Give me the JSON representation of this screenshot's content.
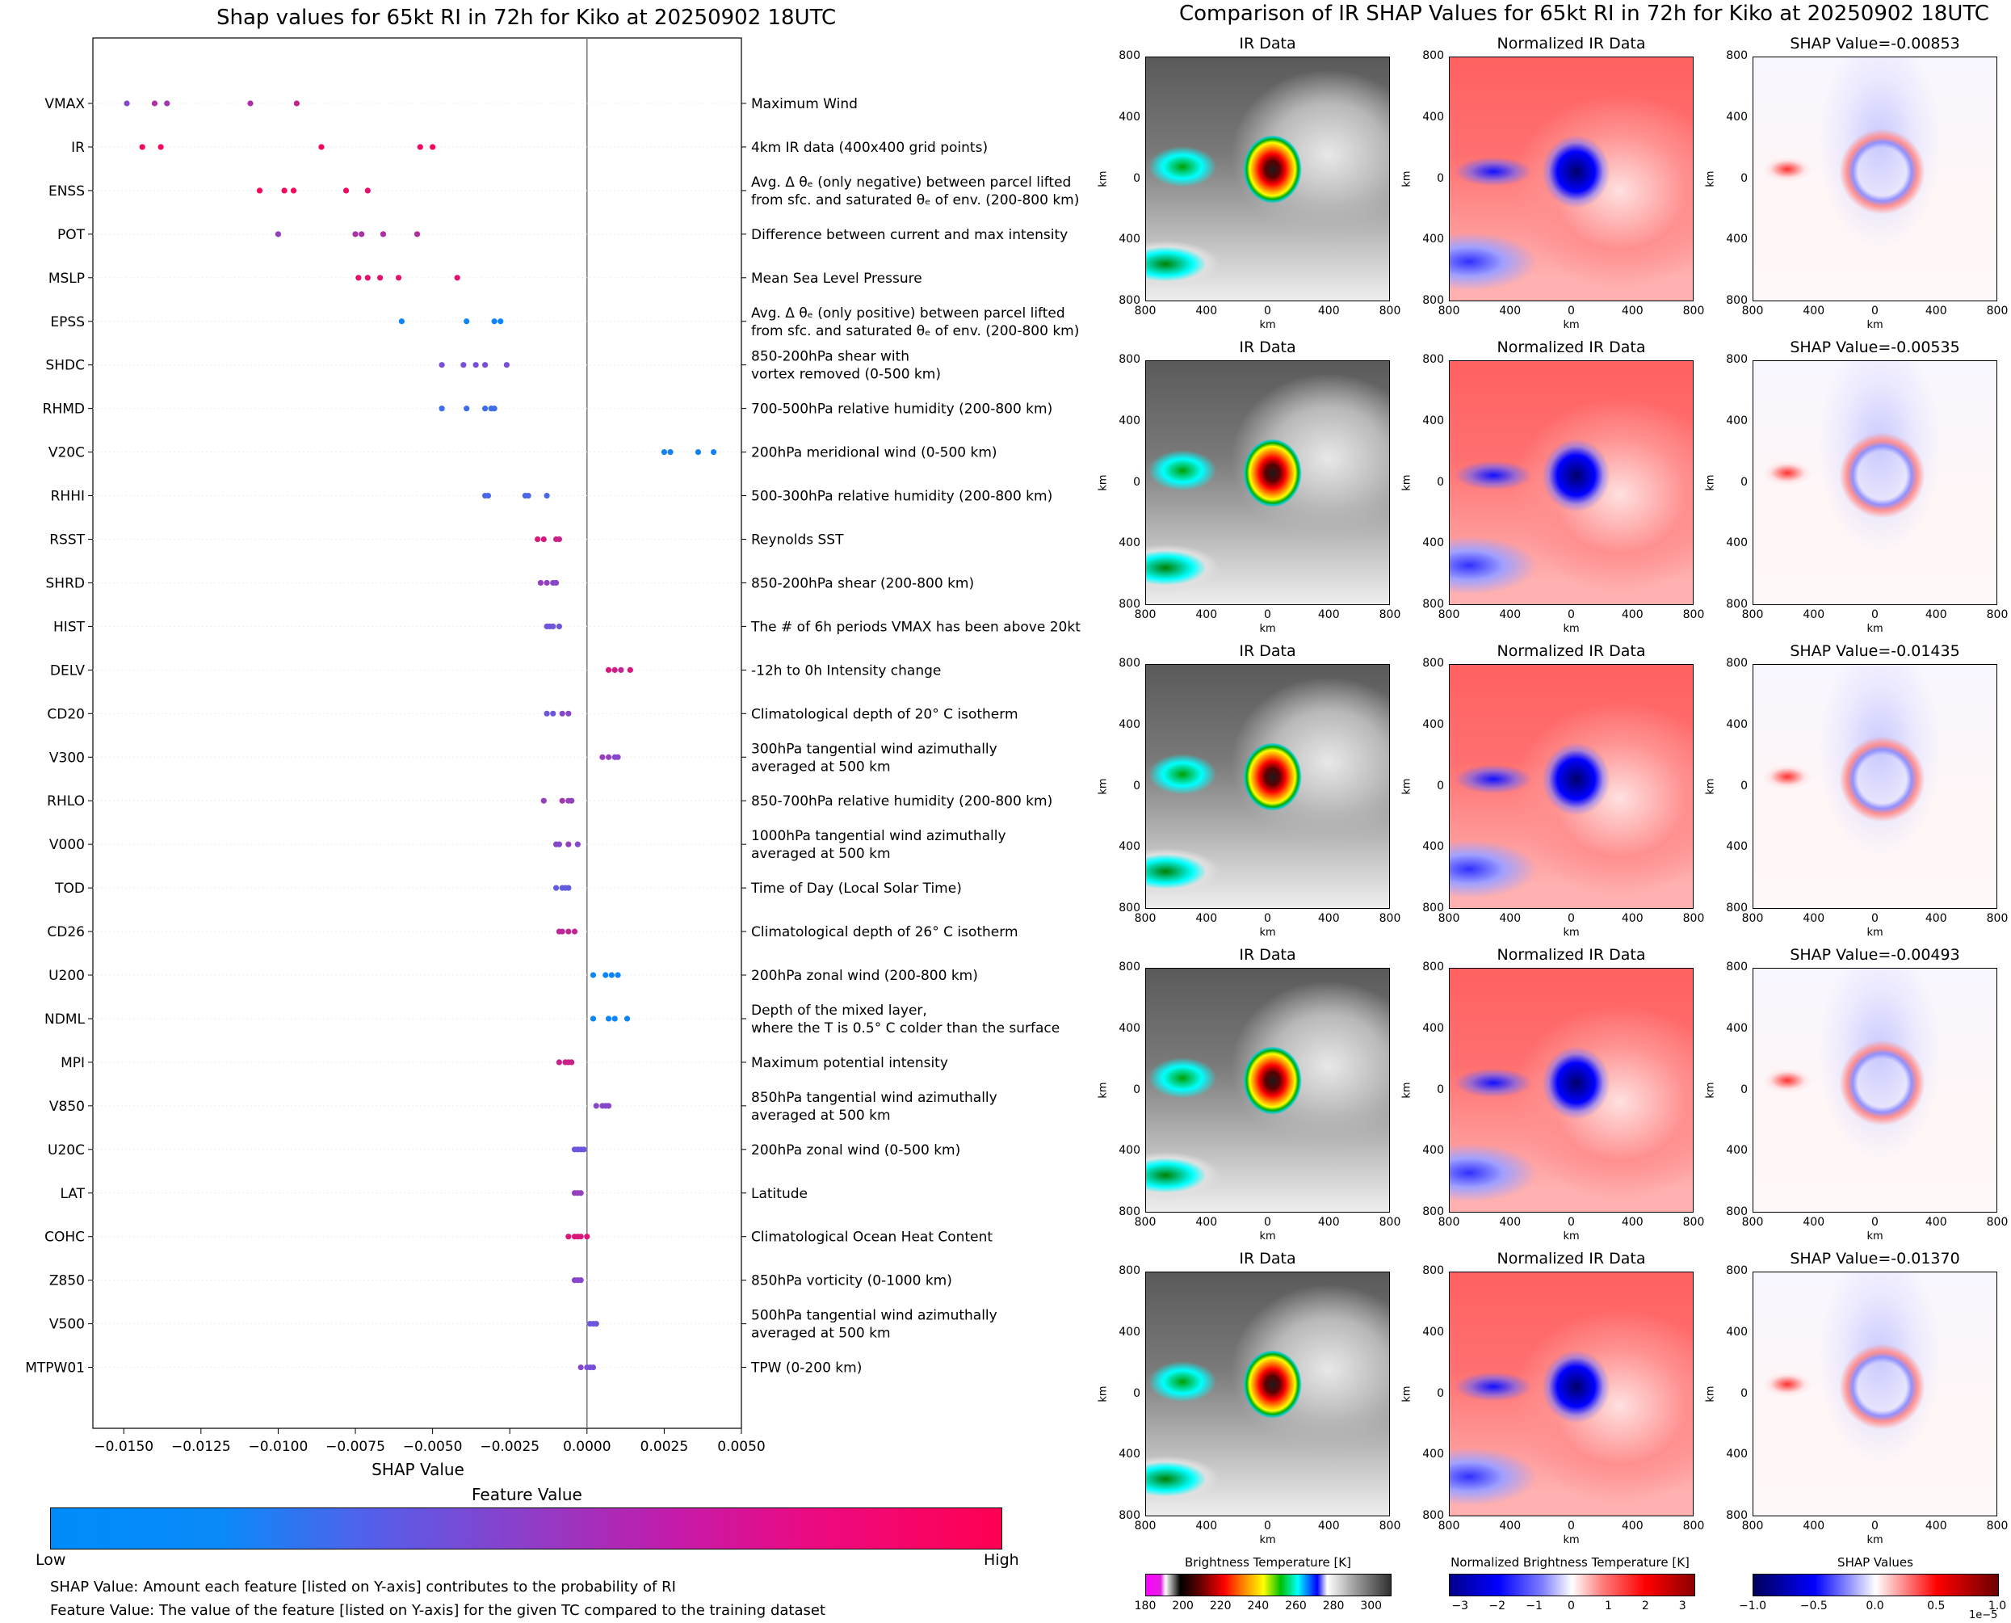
{
  "left": {
    "title": "Shap values for 65kt RI in 72h for Kiko at 20250902 18UTC",
    "xlabel": "SHAP Value",
    "colorbar": {
      "title": "Feature Value",
      "low": "Low",
      "high": "High",
      "low_color": "#008bfb",
      "mid_color": "#7a4fd8",
      "high_color": "#ff0052"
    },
    "notes": [
      "SHAP Value: Amount each feature [listed on Y-axis] contributes to the probability of RI",
      "Feature Value: The value of the feature [listed on Y-axis] for the given TC compared to the training dataset"
    ]
  },
  "chart_data": [
    {
      "type": "scatter",
      "title": "Shap values for 65kt RI in 72h for Kiko at 20250902 18UTC",
      "xlabel": "SHAP Value",
      "ylabel": "",
      "xlim": [
        -0.016,
        0.005
      ],
      "xticks": [
        -0.015,
        -0.0125,
        -0.01,
        -0.0075,
        -0.005,
        -0.0025,
        0.0,
        0.0025,
        0.005
      ],
      "xtick_labels": [
        "−0.0150",
        "−0.0125",
        "−0.0100",
        "−0.0075",
        "−0.0050",
        "−0.0025",
        "0.0000",
        "0.0025",
        "0.0050"
      ],
      "features": [
        {
          "name": "VMAX",
          "desc": [
            "Maximum Wind"
          ],
          "points": [
            [
              -0.0149,
              0.55
            ],
            [
              -0.014,
              0.7
            ],
            [
              -0.0136,
              0.65
            ],
            [
              -0.0109,
              0.7
            ],
            [
              -0.0094,
              0.78
            ]
          ]
        },
        {
          "name": "IR",
          "desc": [
            "4km IR data (400x400 grid points)"
          ],
          "points": [
            [
              -0.0144,
              0.95
            ],
            [
              -0.0138,
              0.95
            ],
            [
              -0.0086,
              0.95
            ],
            [
              -0.0054,
              0.95
            ],
            [
              -0.005,
              0.95
            ]
          ]
        },
        {
          "name": "ENSS",
          "desc": [
            "Avg. Δ θₑ (only negative) between parcel lifted",
            "from sfc. and saturated θₑ of env. (200-800 km)"
          ],
          "points": [
            [
              -0.0106,
              0.95
            ],
            [
              -0.0098,
              0.95
            ],
            [
              -0.0095,
              0.95
            ],
            [
              -0.0078,
              0.95
            ],
            [
              -0.0071,
              0.9
            ]
          ]
        },
        {
          "name": "POT",
          "desc": [
            "Difference between current and max intensity"
          ],
          "points": [
            [
              -0.01,
              0.6
            ],
            [
              -0.0075,
              0.68
            ],
            [
              -0.0073,
              0.68
            ],
            [
              -0.0066,
              0.7
            ],
            [
              -0.0055,
              0.72
            ]
          ]
        },
        {
          "name": "MSLP",
          "desc": [
            "Mean Sea Level Pressure"
          ],
          "points": [
            [
              -0.0074,
              0.9
            ],
            [
              -0.0071,
              0.9
            ],
            [
              -0.0067,
              0.9
            ],
            [
              -0.0061,
              0.9
            ],
            [
              -0.0042,
              0.9
            ]
          ]
        },
        {
          "name": "EPSS",
          "desc": [
            "Avg. Δ θₑ (only positive) between parcel lifted",
            "from sfc. and saturated θₑ of env. (200-800 km)"
          ],
          "points": [
            [
              -0.006,
              0.05
            ],
            [
              -0.0039,
              0.05
            ],
            [
              -0.003,
              0.05
            ],
            [
              -0.0028,
              0.05
            ]
          ]
        },
        {
          "name": "SHDC",
          "desc": [
            "850-200hPa shear with",
            "vortex removed (0-500 km)"
          ],
          "points": [
            [
              -0.0047,
              0.5
            ],
            [
              -0.004,
              0.5
            ],
            [
              -0.0036,
              0.5
            ],
            [
              -0.0033,
              0.5
            ],
            [
              -0.0026,
              0.5
            ]
          ]
        },
        {
          "name": "RHMD",
          "desc": [
            "700-500hPa relative humidity (200-800 km)"
          ],
          "points": [
            [
              -0.0047,
              0.25
            ],
            [
              -0.0039,
              0.25
            ],
            [
              -0.0033,
              0.25
            ],
            [
              -0.0031,
              0.25
            ],
            [
              -0.003,
              0.25
            ]
          ]
        },
        {
          "name": "V20C",
          "desc": [
            "200hPa meridional wind (0-500 km)"
          ],
          "points": [
            [
              0.0025,
              0.08
            ],
            [
              0.0027,
              0.08
            ],
            [
              0.0036,
              0.08
            ],
            [
              0.0041,
              0.08
            ]
          ]
        },
        {
          "name": "RHHI",
          "desc": [
            "500-300hPa relative humidity (200-800 km)"
          ],
          "points": [
            [
              -0.0033,
              0.3
            ],
            [
              -0.0032,
              0.3
            ],
            [
              -0.002,
              0.3
            ],
            [
              -0.0019,
              0.3
            ],
            [
              -0.0013,
              0.3
            ]
          ]
        },
        {
          "name": "RSST",
          "desc": [
            "Reynolds SST"
          ],
          "points": [
            [
              -0.0016,
              0.85
            ],
            [
              -0.0014,
              0.85
            ],
            [
              -0.001,
              0.8
            ],
            [
              -0.0009,
              0.8
            ]
          ]
        },
        {
          "name": "SHRD",
          "desc": [
            "850-200hPa shear (200-800 km)"
          ],
          "points": [
            [
              -0.0015,
              0.6
            ],
            [
              -0.0013,
              0.6
            ],
            [
              -0.0011,
              0.55
            ],
            [
              -0.001,
              0.55
            ]
          ]
        },
        {
          "name": "HIST",
          "desc": [
            "The # of 6h periods VMAX has been above 20kt"
          ],
          "points": [
            [
              -0.0013,
              0.45
            ],
            [
              -0.0012,
              0.45
            ],
            [
              -0.0011,
              0.45
            ],
            [
              -0.0009,
              0.45
            ]
          ]
        },
        {
          "name": "DELV",
          "desc": [
            "-12h to 0h Intensity change"
          ],
          "points": [
            [
              0.0007,
              0.85
            ],
            [
              0.0009,
              0.8
            ],
            [
              0.0011,
              0.75
            ],
            [
              0.0014,
              0.85
            ]
          ]
        },
        {
          "name": "CD20",
          "desc": [
            "Climatological depth of 20° C isotherm"
          ],
          "points": [
            [
              -0.0013,
              0.45
            ],
            [
              -0.0011,
              0.45
            ],
            [
              -0.0008,
              0.55
            ],
            [
              -0.0006,
              0.55
            ]
          ]
        },
        {
          "name": "V300",
          "desc": [
            "300hPa tangential wind azimuthally",
            "averaged at 500 km"
          ],
          "points": [
            [
              0.0005,
              0.6
            ],
            [
              0.0007,
              0.6
            ],
            [
              0.0009,
              0.55
            ],
            [
              0.001,
              0.55
            ]
          ]
        },
        {
          "name": "RHLO",
          "desc": [
            "850-700hPa relative humidity (200-800 km)"
          ],
          "points": [
            [
              -0.0014,
              0.6
            ],
            [
              -0.0008,
              0.65
            ],
            [
              -0.0006,
              0.6
            ],
            [
              -0.0005,
              0.6
            ]
          ]
        },
        {
          "name": "V000",
          "desc": [
            "1000hPa tangential wind azimuthally",
            "averaged at 500 km"
          ],
          "points": [
            [
              -0.001,
              0.55
            ],
            [
              -0.0009,
              0.55
            ],
            [
              -0.0006,
              0.6
            ],
            [
              -0.0003,
              0.55
            ]
          ]
        },
        {
          "name": "TOD",
          "desc": [
            "Time of Day (Local Solar Time)"
          ],
          "points": [
            [
              -0.001,
              0.4
            ],
            [
              -0.0008,
              0.4
            ],
            [
              -0.0007,
              0.4
            ],
            [
              -0.0006,
              0.4
            ]
          ]
        },
        {
          "name": "CD26",
          "desc": [
            "Climatological depth of 26° C isotherm"
          ],
          "points": [
            [
              -0.0009,
              0.75
            ],
            [
              -0.0008,
              0.75
            ],
            [
              -0.0006,
              0.75
            ],
            [
              -0.0004,
              0.75
            ]
          ]
        },
        {
          "name": "U200",
          "desc": [
            "200hPa zonal wind (200-800 km)"
          ],
          "points": [
            [
              0.0002,
              0.05
            ],
            [
              0.0006,
              0.05
            ],
            [
              0.0008,
              0.05
            ],
            [
              0.001,
              0.05
            ]
          ]
        },
        {
          "name": "NDML",
          "desc": [
            "Depth of the mixed layer,",
            "where the T is 0.5° C colder than the surface"
          ],
          "points": [
            [
              0.0002,
              0.05
            ],
            [
              0.0007,
              0.05
            ],
            [
              0.0009,
              0.05
            ],
            [
              0.0013,
              0.05
            ]
          ]
        },
        {
          "name": "MPI",
          "desc": [
            "Maximum potential intensity"
          ],
          "points": [
            [
              -0.0009,
              0.8
            ],
            [
              -0.0007,
              0.8
            ],
            [
              -0.0006,
              0.8
            ],
            [
              -0.0005,
              0.8
            ]
          ]
        },
        {
          "name": "V850",
          "desc": [
            "850hPa tangential wind azimuthally",
            "averaged at 500 km"
          ],
          "points": [
            [
              0.0003,
              0.55
            ],
            [
              0.0005,
              0.55
            ],
            [
              0.0006,
              0.55
            ],
            [
              0.0007,
              0.55
            ]
          ]
        },
        {
          "name": "U20C",
          "desc": [
            "200hPa zonal wind (0-500 km)"
          ],
          "points": [
            [
              -0.0004,
              0.45
            ],
            [
              -0.0003,
              0.45
            ],
            [
              -0.0002,
              0.45
            ],
            [
              -0.0001,
              0.45
            ]
          ]
        },
        {
          "name": "LAT",
          "desc": [
            "Latitude"
          ],
          "points": [
            [
              -0.0004,
              0.6
            ],
            [
              -0.0003,
              0.6
            ],
            [
              -0.0002,
              0.6
            ]
          ]
        },
        {
          "name": "COHC",
          "desc": [
            "Climatological Ocean Heat Content"
          ],
          "points": [
            [
              -0.0006,
              0.85
            ],
            [
              -0.0004,
              0.85
            ],
            [
              -0.0003,
              0.85
            ],
            [
              -0.0002,
              0.85
            ],
            [
              0.0,
              0.85
            ]
          ]
        },
        {
          "name": "Z850",
          "desc": [
            "850hPa vorticity (0-1000 km)"
          ],
          "points": [
            [
              -0.0004,
              0.55
            ],
            [
              -0.0003,
              0.55
            ],
            [
              -0.0002,
              0.55
            ]
          ]
        },
        {
          "name": "V500",
          "desc": [
            "500hPa tangential wind azimuthally",
            "averaged at 500 km"
          ],
          "points": [
            [
              0.0001,
              0.45
            ],
            [
              0.0002,
              0.45
            ],
            [
              0.0003,
              0.45
            ]
          ]
        },
        {
          "name": "MTPW01",
          "desc": [
            "TPW (0-200 km)"
          ],
          "points": [
            [
              -0.0002,
              0.55
            ],
            [
              0.0,
              0.5
            ],
            [
              0.0001,
              0.5
            ],
            [
              0.0002,
              0.5
            ]
          ]
        }
      ]
    },
    {
      "type": "heatmap",
      "title": "Comparison of IR SHAP Values for 65kt RI in 72h for Kiko at 20250902 18UTC",
      "column_titles": [
        "IR Data",
        "Normalized IR Data"
      ],
      "shap_titles": [
        "SHAP Value=-0.00853",
        "SHAP Value=-0.00535",
        "SHAP Value=-0.01435",
        "SHAP Value=-0.00493",
        "SHAP Value=-0.01370"
      ],
      "xlabel": "km",
      "ylabel": "km",
      "axis_ticks": [
        "800",
        "400",
        "0",
        "400",
        "800"
      ],
      "colorbars": [
        {
          "title": "Brightness Temperature [K]",
          "ticks": [
            "180",
            "200",
            "220",
            "240",
            "260",
            "280",
            "300"
          ],
          "range": [
            180,
            310
          ]
        },
        {
          "title": "Normalized Brightness Temperature [K]",
          "ticks": [
            "−3",
            "−2",
            "−1",
            "0",
            "1",
            "2",
            "3"
          ],
          "range": [
            -3.3,
            3.3
          ]
        },
        {
          "title": "SHAP Values",
          "ticks": [
            "−1.0",
            "−0.5",
            "0.0",
            "0.5",
            "1.0"
          ],
          "range": [
            -1.0,
            1.0
          ],
          "offset": "1e−5"
        }
      ]
    }
  ]
}
